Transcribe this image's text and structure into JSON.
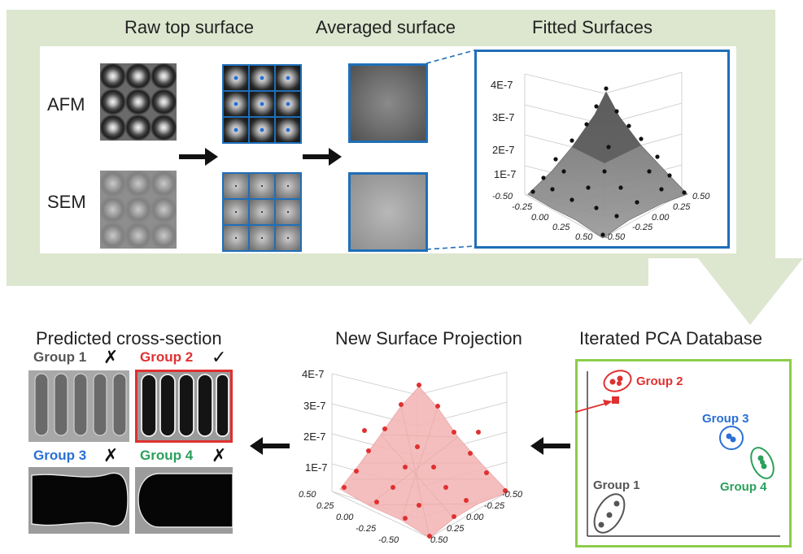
{
  "top": {
    "titles": {
      "raw": "Raw top surface",
      "averaged": "Averaged surface",
      "fitted": "Fitted Surfaces"
    },
    "rows": [
      "AFM",
      "SEM"
    ],
    "fitted_plot": {
      "z_ticks": [
        "4E-7",
        "3E-7",
        "2E-7",
        "1E-7"
      ],
      "x_ticks": [
        "-0.50",
        "-0.25",
        "0.00",
        "0.25",
        "0.50"
      ],
      "y_ticks": [
        "0.50",
        "0.25",
        "0.00",
        "-0.25",
        "-0.50"
      ]
    }
  },
  "bottom": {
    "titles": {
      "predicted": "Predicted cross-section",
      "projection": "New Surface Projection",
      "pca": "Iterated PCA Database"
    },
    "groups": [
      {
        "label": "Group 1",
        "mark": "✗",
        "color": "#555555"
      },
      {
        "label": "Group 2",
        "mark": "✓",
        "color": "#e03030"
      },
      {
        "label": "Group 3",
        "mark": "✗",
        "color": "#2a6fd6"
      },
      {
        "label": "Group 4",
        "mark": "✗",
        "color": "#2aa05a"
      }
    ],
    "projection_plot": {
      "z_ticks": [
        "4E-7",
        "3E-7",
        "2E-7",
        "1E-7"
      ],
      "x_ticks": [
        "0.50",
        "0.25",
        "0.00",
        "-0.25",
        "-0.50"
      ],
      "y_ticks": [
        "-0.50",
        "-0.25",
        "0.00",
        "0.25",
        "0.50"
      ]
    },
    "pca_labels": {
      "g1": "Group 1",
      "g2": "Group 2",
      "g3": "Group 3",
      "g4": "Group 4"
    }
  },
  "colors": {
    "green_band": "#dde6cf",
    "blue_frame": "#1f6fb8",
    "pca_frame": "#8ccd4a",
    "red": "#e03030"
  }
}
